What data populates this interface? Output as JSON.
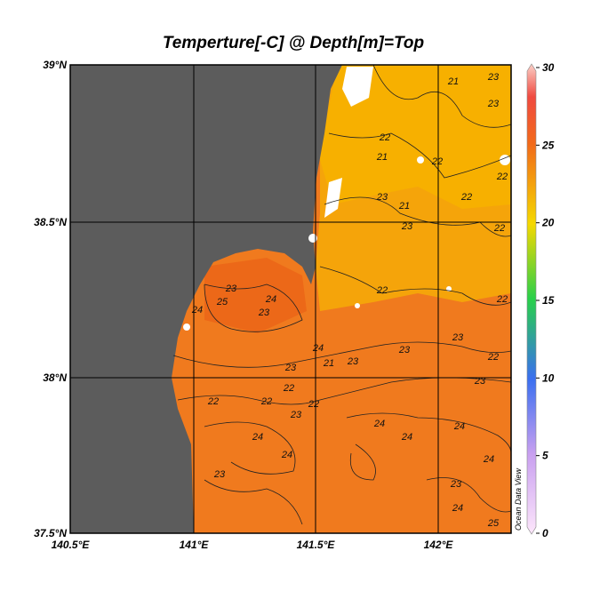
{
  "title": "Temperture[-C] @ Depth[m]=Top",
  "x_axis": {
    "ticks": [
      "140.5°E",
      "141°E",
      "141.5°E",
      "142°E"
    ]
  },
  "y_axis": {
    "ticks": [
      "39°N",
      "38.5°N",
      "38°N",
      "37.5°N"
    ]
  },
  "colorbar": {
    "ticks": [
      30,
      25,
      20,
      15,
      10,
      5,
      0
    ]
  },
  "watermark": "Ocean Data View",
  "contour_labels": [
    "21",
    "23",
    "23",
    "22",
    "21",
    "22",
    "22",
    "23",
    "21",
    "22",
    "23",
    "22",
    "22",
    "24",
    "25",
    "23",
    "24",
    "23",
    "22",
    "23",
    "24",
    "21",
    "23",
    "23",
    "23",
    "22",
    "22",
    "22",
    "22",
    "22",
    "23",
    "23",
    "24",
    "24",
    "24",
    "24",
    "24",
    "24",
    "23",
    "23",
    "24",
    "25"
  ]
}
